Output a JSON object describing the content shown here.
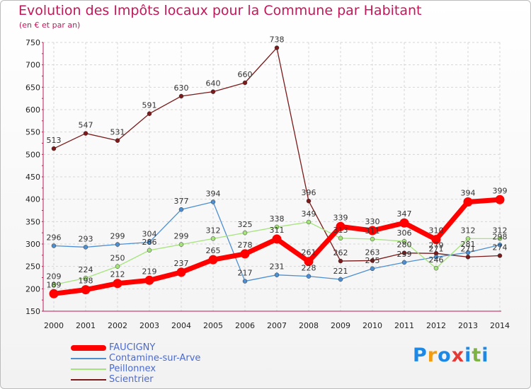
{
  "chart_data": {
    "type": "line",
    "title": "Evolution des Impôts locaux pour la Commune par Habitant",
    "subtitle": "(en € et par an)",
    "xlabel": "",
    "ylabel": "",
    "ylim": [
      150,
      750
    ],
    "yticks": [
      150,
      200,
      250,
      300,
      350,
      400,
      450,
      500,
      550,
      600,
      650,
      700,
      750
    ],
    "categories": [
      "2000",
      "2001",
      "2002",
      "2003",
      "2004",
      "2005",
      "2006",
      "2007",
      "2008",
      "2009",
      "2010",
      "2011",
      "2012",
      "2013",
      "2014"
    ],
    "series": [
      {
        "name": "FAUCIGNY",
        "color": "#ff0000",
        "values": [
          189,
          198,
          212,
          219,
          237,
          265,
          278,
          311,
          261,
          339,
          330,
          347,
          310,
          394,
          399
        ]
      },
      {
        "name": "Contamine-sur-Arve",
        "color": "#4d8fd1",
        "values": [
          296,
          293,
          299,
          304,
          377,
          394,
          217,
          231,
          228,
          221,
          245,
          259,
          271,
          281,
          298
        ]
      },
      {
        "name": "Peillonnex",
        "color": "#a5e37b",
        "values": [
          209,
          224,
          250,
          286,
          299,
          312,
          325,
          338,
          349,
          313,
          311,
          306,
          246,
          312,
          312
        ]
      },
      {
        "name": "Scientrier",
        "color": "#7a1a1a",
        "values": [
          513,
          547,
          531,
          591,
          630,
          640,
          660,
          738,
          396,
          262,
          263,
          280,
          279,
          271,
          274
        ]
      }
    ],
    "legend_position": "bottom-left",
    "grid": true
  },
  "logo": {
    "letters": [
      "P",
      "r",
      "o",
      "x",
      "i",
      "t",
      "i"
    ],
    "colors": [
      "#1e88e5",
      "#f39c12",
      "#1e88e5",
      "#e53935",
      "#1e88e5",
      "#7cb342",
      "#1e88e5"
    ]
  }
}
